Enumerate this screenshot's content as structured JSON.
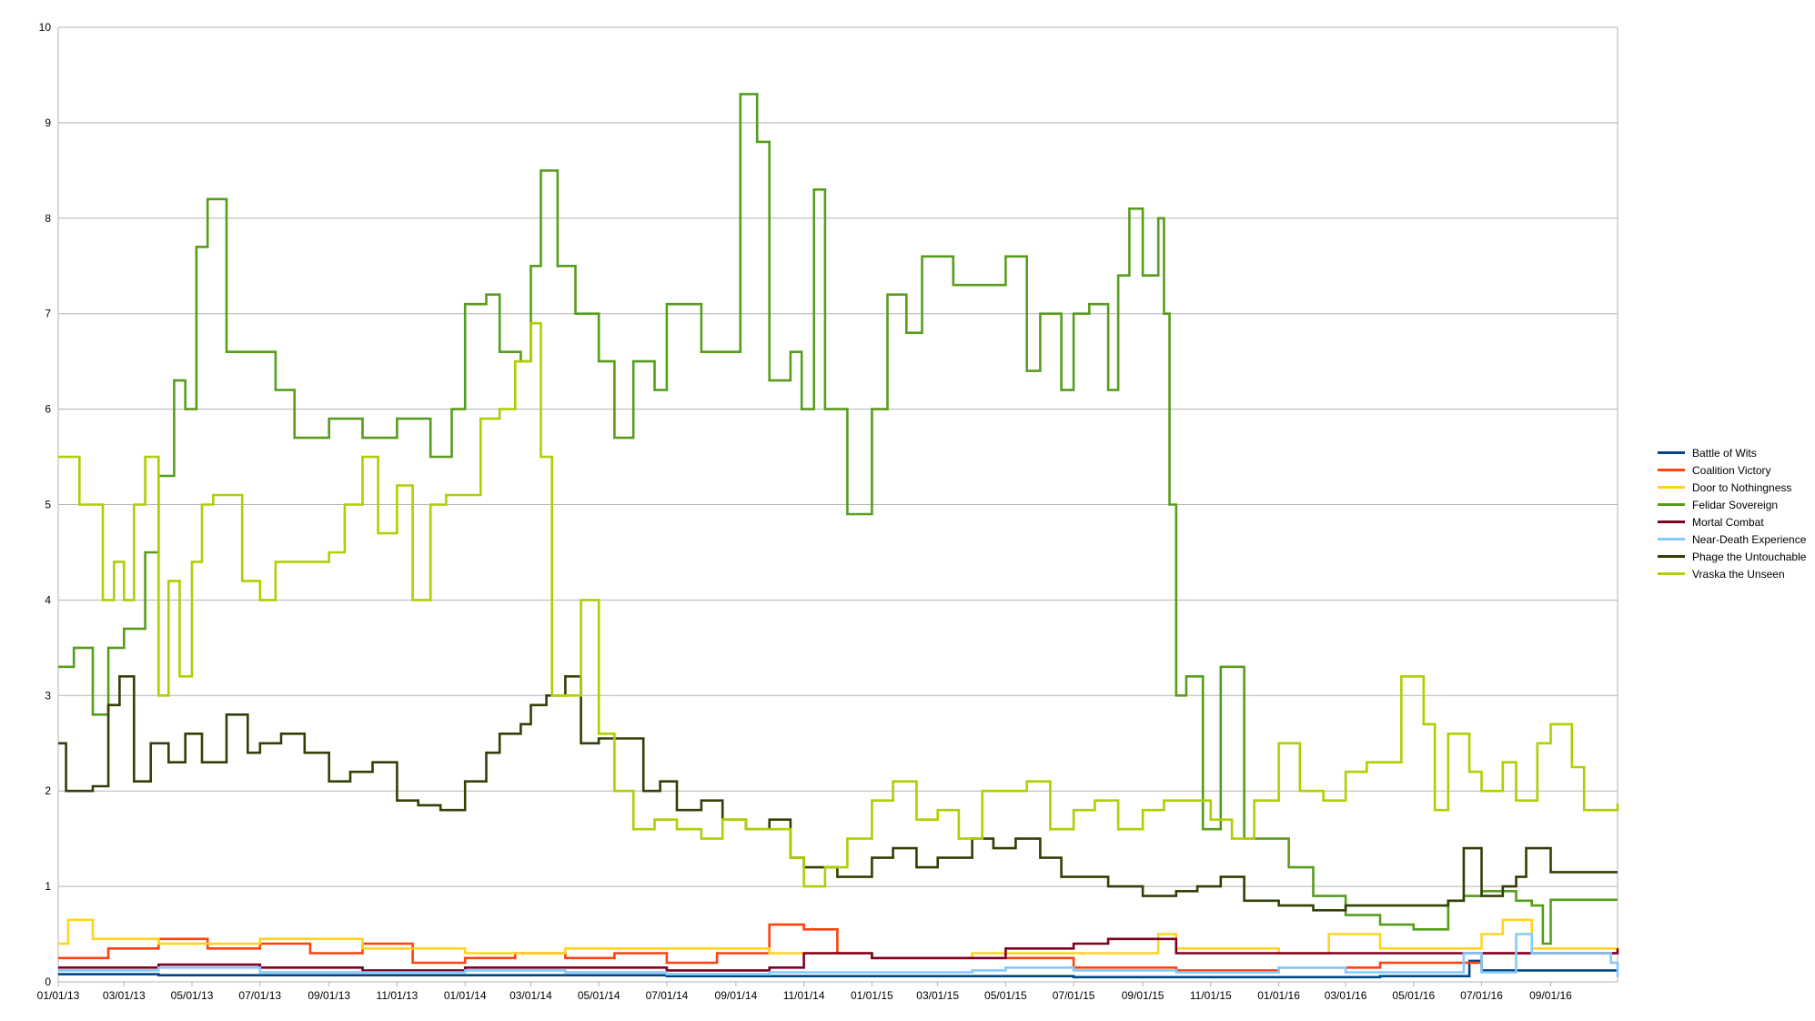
{
  "chart_data": {
    "type": "line",
    "title": "",
    "xlabel": "",
    "ylabel": "",
    "ylim": [
      0,
      10
    ],
    "yticks": [
      0,
      1,
      2,
      3,
      4,
      5,
      6,
      7,
      8,
      9,
      10
    ],
    "xlim": [
      "2013-01-01",
      "2016-10-31"
    ],
    "xticks": [
      {
        "date": "2013-01-01",
        "label": "01/01/13"
      },
      {
        "date": "2013-03-01",
        "label": "03/01/13"
      },
      {
        "date": "2013-05-01",
        "label": "05/01/13"
      },
      {
        "date": "2013-07-01",
        "label": "07/01/13"
      },
      {
        "date": "2013-09-01",
        "label": "09/01/13"
      },
      {
        "date": "2013-11-01",
        "label": "11/01/13"
      },
      {
        "date": "2014-01-01",
        "label": "01/01/14"
      },
      {
        "date": "2014-03-01",
        "label": "03/01/14"
      },
      {
        "date": "2014-05-01",
        "label": "05/01/14"
      },
      {
        "date": "2014-07-01",
        "label": "07/01/14"
      },
      {
        "date": "2014-09-01",
        "label": "09/01/14"
      },
      {
        "date": "2014-11-01",
        "label": "11/01/14"
      },
      {
        "date": "2015-01-01",
        "label": "01/01/15"
      },
      {
        "date": "2015-03-01",
        "label": "03/01/15"
      },
      {
        "date": "2015-05-01",
        "label": "05/01/15"
      },
      {
        "date": "2015-07-01",
        "label": "07/01/15"
      },
      {
        "date": "2015-09-01",
        "label": "09/01/15"
      },
      {
        "date": "2015-11-01",
        "label": "11/01/15"
      },
      {
        "date": "2016-01-01",
        "label": "01/01/16"
      },
      {
        "date": "2016-03-01",
        "label": "03/01/16"
      },
      {
        "date": "2016-05-01",
        "label": "05/01/16"
      },
      {
        "date": "2016-07-01",
        "label": "07/01/16"
      },
      {
        "date": "2016-09-01",
        "label": "09/01/16"
      }
    ],
    "grid": true,
    "legend_position": "right",
    "step": true,
    "series": [
      {
        "name": "Battle of Wits",
        "color": "#004586",
        "x": [
          "2013-01-01",
          "2013-04-01",
          "2013-07-01",
          "2013-10-01",
          "2014-01-01",
          "2014-04-01",
          "2014-07-01",
          "2014-10-01",
          "2015-01-01",
          "2015-04-01",
          "2015-07-01",
          "2015-10-01",
          "2016-01-01",
          "2016-04-01",
          "2016-06-20",
          "2016-07-01",
          "2016-08-01",
          "2016-09-01",
          "2016-10-31"
        ],
        "values": [
          0.08,
          0.07,
          0.07,
          0.07,
          0.07,
          0.07,
          0.06,
          0.06,
          0.06,
          0.06,
          0.05,
          0.05,
          0.05,
          0.06,
          0.22,
          0.12,
          0.12,
          0.12,
          0.12
        ]
      },
      {
        "name": "Coalition Victory",
        "color": "#ff420e",
        "x": [
          "2013-01-01",
          "2013-02-15",
          "2013-04-01",
          "2013-05-15",
          "2013-07-01",
          "2013-08-15",
          "2013-10-01",
          "2013-11-15",
          "2014-01-01",
          "2014-02-15",
          "2014-04-01",
          "2014-05-15",
          "2014-07-01",
          "2014-08-15",
          "2014-10-01",
          "2014-11-01",
          "2014-12-01",
          "2015-01-01",
          "2015-04-01",
          "2015-07-01",
          "2015-10-01",
          "2016-01-01",
          "2016-04-01",
          "2016-07-01",
          "2016-10-31"
        ],
        "values": [
          0.25,
          0.35,
          0.45,
          0.35,
          0.4,
          0.3,
          0.4,
          0.2,
          0.25,
          0.3,
          0.25,
          0.3,
          0.2,
          0.3,
          0.6,
          0.55,
          0.3,
          0.25,
          0.25,
          0.15,
          0.12,
          0.15,
          0.2,
          0.3,
          0.3
        ]
      },
      {
        "name": "Door to Nothingness",
        "color": "#ffd320",
        "x": [
          "2013-01-01",
          "2013-01-10",
          "2013-02-01",
          "2013-04-01",
          "2013-07-01",
          "2013-10-01",
          "2014-01-01",
          "2014-04-01",
          "2014-07-01",
          "2014-10-01",
          "2015-01-01",
          "2015-04-01",
          "2015-07-01",
          "2015-09-15",
          "2015-10-01",
          "2016-01-01",
          "2016-02-15",
          "2016-04-01",
          "2016-07-01",
          "2016-07-20",
          "2016-08-15",
          "2016-10-31"
        ],
        "values": [
          0.4,
          0.65,
          0.45,
          0.4,
          0.45,
          0.35,
          0.3,
          0.35,
          0.35,
          0.3,
          0.25,
          0.3,
          0.3,
          0.5,
          0.35,
          0.3,
          0.5,
          0.35,
          0.5,
          0.65,
          0.35,
          0.3
        ]
      },
      {
        "name": "Felidar Sovereign",
        "color": "#579d1c",
        "x": [
          "2013-01-01",
          "2013-01-15",
          "2013-02-01",
          "2013-02-15",
          "2013-03-01",
          "2013-03-20",
          "2013-04-01",
          "2013-04-15",
          "2013-04-25",
          "2013-05-05",
          "2013-05-15",
          "2013-06-01",
          "2013-06-20",
          "2013-07-01",
          "2013-07-15",
          "2013-08-01",
          "2013-09-01",
          "2013-10-01",
          "2013-11-01",
          "2013-12-01",
          "2013-12-20",
          "2014-01-01",
          "2014-01-20",
          "2014-02-01",
          "2014-02-20",
          "2014-03-01",
          "2014-03-10",
          "2014-03-25",
          "2014-04-10",
          "2014-05-01",
          "2014-05-15",
          "2014-06-01",
          "2014-06-20",
          "2014-07-01",
          "2014-08-01",
          "2014-08-31",
          "2014-09-05",
          "2014-09-20",
          "2014-10-01",
          "2014-10-20",
          "2014-10-30",
          "2014-11-10",
          "2014-11-20",
          "2014-12-01",
          "2014-12-10",
          "2015-01-01",
          "2015-01-15",
          "2015-02-01",
          "2015-02-15",
          "2015-03-15",
          "2015-04-15",
          "2015-05-01",
          "2015-05-20",
          "2015-06-01",
          "2015-06-20",
          "2015-07-01",
          "2015-07-15",
          "2015-08-01",
          "2015-08-10",
          "2015-08-20",
          "2015-09-01",
          "2015-09-15",
          "2015-09-20",
          "2015-09-25",
          "2015-10-01",
          "2015-10-10",
          "2015-10-25",
          "2015-11-10",
          "2015-12-01",
          "2015-12-20",
          "2016-01-10",
          "2016-02-01",
          "2016-03-01",
          "2016-04-01",
          "2016-05-01",
          "2016-06-01",
          "2016-06-15",
          "2016-07-01",
          "2016-08-01",
          "2016-08-15",
          "2016-08-25",
          "2016-09-01",
          "2016-10-31"
        ],
        "values": [
          3.3,
          3.5,
          2.8,
          3.5,
          3.7,
          4.5,
          5.3,
          6.3,
          6.0,
          7.7,
          8.2,
          6.6,
          6.6,
          6.6,
          6.2,
          5.7,
          5.9,
          5.7,
          5.9,
          5.5,
          6.0,
          7.1,
          7.2,
          6.6,
          6.5,
          7.5,
          8.5,
          7.5,
          7.0,
          6.5,
          5.7,
          6.5,
          6.2,
          7.1,
          6.6,
          6.6,
          9.3,
          8.8,
          6.3,
          6.6,
          6.0,
          8.3,
          6.0,
          6.0,
          4.9,
          6.0,
          7.2,
          6.8,
          7.6,
          7.3,
          7.3,
          7.6,
          6.4,
          7.0,
          6.2,
          7.0,
          7.1,
          6.2,
          7.4,
          8.1,
          7.4,
          8.0,
          7.0,
          5.0,
          3.0,
          3.2,
          1.6,
          3.3,
          1.5,
          1.5,
          1.2,
          0.9,
          0.7,
          0.6,
          0.55,
          0.85,
          0.9,
          0.95,
          0.85,
          0.8,
          0.4,
          0.86,
          0.86
        ]
      },
      {
        "name": "Mortal Combat",
        "color": "#7e0021",
        "x": [
          "2013-01-01",
          "2013-04-01",
          "2013-07-01",
          "2013-10-01",
          "2014-01-01",
          "2014-04-01",
          "2014-07-01",
          "2014-10-01",
          "2014-11-01",
          "2015-01-01",
          "2015-04-01",
          "2015-05-01",
          "2015-07-01",
          "2015-08-01",
          "2015-10-01",
          "2016-01-01",
          "2016-04-01",
          "2016-07-01",
          "2016-10-31"
        ],
        "values": [
          0.15,
          0.18,
          0.15,
          0.12,
          0.15,
          0.15,
          0.12,
          0.15,
          0.3,
          0.25,
          0.25,
          0.35,
          0.4,
          0.45,
          0.3,
          0.3,
          0.3,
          0.3,
          0.35
        ]
      },
      {
        "name": "Near-Death Experience",
        "color": "#83caff",
        "x": [
          "2013-01-01",
          "2013-04-01",
          "2013-07-01",
          "2013-10-01",
          "2014-01-01",
          "2014-04-01",
          "2014-07-01",
          "2014-10-01",
          "2015-01-01",
          "2015-04-01",
          "2015-05-01",
          "2015-07-01",
          "2015-10-01",
          "2016-01-01",
          "2016-03-01",
          "2016-06-15",
          "2016-07-01",
          "2016-08-01",
          "2016-08-15",
          "2016-10-25",
          "2016-10-31"
        ],
        "values": [
          0.12,
          0.15,
          0.1,
          0.1,
          0.12,
          0.1,
          0.08,
          0.1,
          0.1,
          0.12,
          0.15,
          0.12,
          0.1,
          0.15,
          0.1,
          0.3,
          0.1,
          0.5,
          0.3,
          0.2,
          0.05
        ]
      },
      {
        "name": "Phage the Untouchable",
        "color": "#314004",
        "x": [
          "2013-01-01",
          "2013-01-08",
          "2013-01-15",
          "2013-02-01",
          "2013-02-15",
          "2013-02-25",
          "2013-03-10",
          "2013-03-25",
          "2013-04-10",
          "2013-04-25",
          "2013-05-10",
          "2013-06-01",
          "2013-06-20",
          "2013-07-01",
          "2013-07-20",
          "2013-08-10",
          "2013-09-01",
          "2013-09-20",
          "2013-10-10",
          "2013-11-01",
          "2013-11-20",
          "2013-12-10",
          "2014-01-01",
          "2014-01-20",
          "2014-02-01",
          "2014-02-20",
          "2014-03-01",
          "2014-03-15",
          "2014-04-01",
          "2014-04-15",
          "2014-05-01",
          "2014-06-01",
          "2014-06-10",
          "2014-06-25",
          "2014-07-10",
          "2014-08-01",
          "2014-08-20",
          "2014-09-10",
          "2014-10-01",
          "2014-10-20",
          "2014-11-01",
          "2014-12-01",
          "2015-01-01",
          "2015-01-20",
          "2015-02-10",
          "2015-03-01",
          "2015-04-01",
          "2015-04-20",
          "2015-05-10",
          "2015-06-01",
          "2015-06-20",
          "2015-07-10",
          "2015-08-01",
          "2015-09-01",
          "2015-10-01",
          "2015-10-20",
          "2015-11-10",
          "2015-12-01",
          "2016-01-01",
          "2016-02-01",
          "2016-03-01",
          "2016-04-01",
          "2016-05-01",
          "2016-06-01",
          "2016-06-15",
          "2016-07-01",
          "2016-07-20",
          "2016-08-01",
          "2016-08-10",
          "2016-09-01",
          "2016-10-31"
        ],
        "values": [
          2.5,
          2.0,
          2.0,
          2.05,
          2.9,
          3.2,
          2.1,
          2.5,
          2.3,
          2.6,
          2.3,
          2.8,
          2.4,
          2.5,
          2.6,
          2.4,
          2.1,
          2.2,
          2.3,
          1.9,
          1.85,
          1.8,
          2.1,
          2.4,
          2.6,
          2.7,
          2.9,
          3.0,
          3.2,
          2.5,
          2.55,
          2.55,
          2.0,
          2.1,
          1.8,
          1.9,
          1.7,
          1.6,
          1.7,
          1.3,
          1.2,
          1.1,
          1.3,
          1.4,
          1.2,
          1.3,
          1.5,
          1.4,
          1.5,
          1.3,
          1.1,
          1.1,
          1.0,
          0.9,
          0.95,
          1.0,
          1.1,
          0.85,
          0.8,
          0.75,
          0.8,
          0.8,
          0.8,
          0.85,
          1.4,
          0.9,
          1.0,
          1.1,
          1.4,
          1.15,
          1.15
        ]
      },
      {
        "name": "Vraska the Unseen",
        "color": "#aecf00",
        "x": [
          "2013-01-01",
          "2013-01-20",
          "2013-02-01",
          "2013-02-10",
          "2013-02-20",
          "2013-03-01",
          "2013-03-10",
          "2013-03-20",
          "2013-04-01",
          "2013-04-10",
          "2013-04-20",
          "2013-05-01",
          "2013-05-10",
          "2013-05-20",
          "2013-06-01",
          "2013-06-15",
          "2013-07-01",
          "2013-07-15",
          "2013-08-01",
          "2013-08-20",
          "2013-09-01",
          "2013-09-15",
          "2013-10-01",
          "2013-10-15",
          "2013-11-01",
          "2013-11-15",
          "2013-12-01",
          "2013-12-15",
          "2014-01-01",
          "2014-01-15",
          "2014-02-01",
          "2014-02-15",
          "2014-03-01",
          "2014-03-10",
          "2014-03-20",
          "2014-04-01",
          "2014-04-15",
          "2014-05-01",
          "2014-05-15",
          "2014-06-01",
          "2014-06-20",
          "2014-07-10",
          "2014-08-01",
          "2014-08-20",
          "2014-09-10",
          "2014-10-01",
          "2014-10-20",
          "2014-11-01",
          "2014-11-20",
          "2014-12-10",
          "2015-01-01",
          "2015-01-20",
          "2015-02-10",
          "2015-03-01",
          "2015-03-20",
          "2015-04-10",
          "2015-05-01",
          "2015-05-20",
          "2015-06-10",
          "2015-07-01",
          "2015-07-20",
          "2015-08-10",
          "2015-09-01",
          "2015-09-20",
          "2015-10-10",
          "2015-11-01",
          "2015-11-20",
          "2015-12-10",
          "2016-01-01",
          "2016-01-20",
          "2016-02-10",
          "2016-03-01",
          "2016-03-20",
          "2016-04-01",
          "2016-04-20",
          "2016-05-10",
          "2016-05-20",
          "2016-06-01",
          "2016-06-20",
          "2016-07-01",
          "2016-07-20",
          "2016-08-01",
          "2016-08-20",
          "2016-09-01",
          "2016-09-20",
          "2016-10-01",
          "2016-10-31"
        ],
        "values": [
          5.5,
          5.0,
          5.0,
          4.0,
          4.4,
          4.0,
          5.0,
          5.5,
          3.0,
          4.2,
          3.2,
          4.4,
          5.0,
          5.1,
          5.1,
          4.2,
          4.0,
          4.4,
          4.4,
          4.4,
          4.5,
          5.0,
          5.5,
          4.7,
          5.2,
          4.0,
          5.0,
          5.1,
          5.1,
          5.9,
          6.0,
          6.5,
          6.9,
          5.5,
          3.0,
          3.0,
          4.0,
          2.6,
          2.0,
          1.6,
          1.7,
          1.6,
          1.5,
          1.7,
          1.6,
          1.6,
          1.3,
          1.0,
          1.2,
          1.5,
          1.9,
          2.1,
          1.7,
          1.8,
          1.5,
          2.0,
          2.0,
          2.1,
          1.6,
          1.8,
          1.9,
          1.6,
          1.8,
          1.9,
          1.9,
          1.7,
          1.5,
          1.9,
          2.5,
          2.0,
          1.9,
          2.2,
          2.3,
          2.3,
          3.2,
          2.7,
          1.8,
          2.6,
          2.2,
          2.0,
          2.3,
          1.9,
          2.5,
          2.7,
          2.25,
          1.8,
          1.87
        ]
      }
    ]
  }
}
